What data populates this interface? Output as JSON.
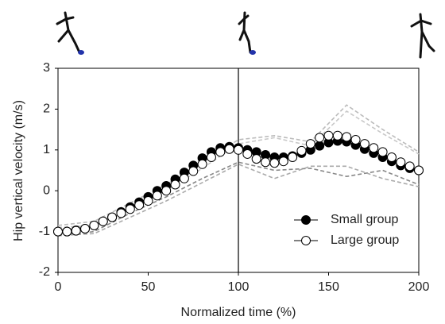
{
  "chart_data": {
    "type": "line",
    "xlabel": "Normalized time (%)",
    "ylabel": "Hip vertical velocity (m/s)",
    "xlim": [
      0,
      200
    ],
    "xticks": [
      0,
      50,
      100,
      150,
      200
    ],
    "ylim": [
      -2,
      3
    ],
    "yticks": [
      -2,
      -1,
      0,
      1,
      2,
      3
    ],
    "vline": 100,
    "legend": "lower right",
    "x": [
      0,
      5,
      10,
      15,
      20,
      25,
      30,
      35,
      40,
      45,
      50,
      55,
      60,
      65,
      70,
      75,
      80,
      85,
      90,
      95,
      100,
      105,
      110,
      115,
      120,
      125,
      130,
      135,
      140,
      145,
      150,
      155,
      160,
      165,
      170,
      175,
      180,
      185,
      190,
      195,
      200
    ],
    "series": [
      {
        "name": "Small group",
        "color": "#000000",
        "marker": "filled",
        "values": [
          -1.0,
          -1.0,
          -0.97,
          -0.93,
          -0.85,
          -0.75,
          -0.65,
          -0.52,
          -0.4,
          -0.28,
          -0.15,
          0.0,
          0.12,
          0.28,
          0.45,
          0.62,
          0.8,
          0.95,
          1.05,
          1.08,
          1.05,
          1.0,
          0.95,
          0.88,
          0.82,
          0.82,
          0.85,
          0.92,
          1.0,
          1.1,
          1.18,
          1.22,
          1.2,
          1.12,
          1.02,
          0.92,
          0.82,
          0.72,
          0.62,
          0.55,
          0.5
        ]
      },
      {
        "name": "Large group",
        "color": "#000000",
        "marker": "open",
        "values": [
          -1.0,
          -1.0,
          -0.98,
          -0.93,
          -0.85,
          -0.75,
          -0.65,
          -0.55,
          -0.45,
          -0.35,
          -0.25,
          -0.12,
          0.0,
          0.15,
          0.3,
          0.48,
          0.65,
          0.82,
          0.95,
          1.02,
          1.0,
          0.9,
          0.78,
          0.7,
          0.68,
          0.72,
          0.82,
          0.98,
          1.15,
          1.3,
          1.35,
          1.35,
          1.32,
          1.25,
          1.15,
          1.05,
          0.95,
          0.82,
          0.7,
          0.6,
          0.5
        ]
      }
    ],
    "bands_x": [
      0,
      20,
      40,
      60,
      80,
      100,
      120,
      140,
      160,
      180,
      200
    ],
    "bands": [
      {
        "color": "#bbbbbb",
        "values": [
          -0.85,
          -0.75,
          -0.3,
          0.15,
          0.7,
          1.25,
          1.35,
          1.2,
          2.1,
          1.5,
          0.95
        ]
      },
      {
        "color": "#c8c8c8",
        "values": [
          -0.9,
          -0.85,
          -0.45,
          0.0,
          0.55,
          1.15,
          1.3,
          1.1,
          1.95,
          1.4,
          0.9
        ]
      },
      {
        "color": "#888888",
        "values": [
          -1.1,
          -1.0,
          -0.55,
          -0.15,
          0.3,
          0.7,
          0.5,
          0.55,
          0.35,
          0.5,
          0.15
        ]
      },
      {
        "color": "#aaaaaa",
        "values": [
          -1.1,
          -1.05,
          -0.65,
          -0.25,
          0.2,
          0.65,
          0.3,
          0.6,
          0.6,
          0.3,
          0.1
        ]
      }
    ]
  }
}
